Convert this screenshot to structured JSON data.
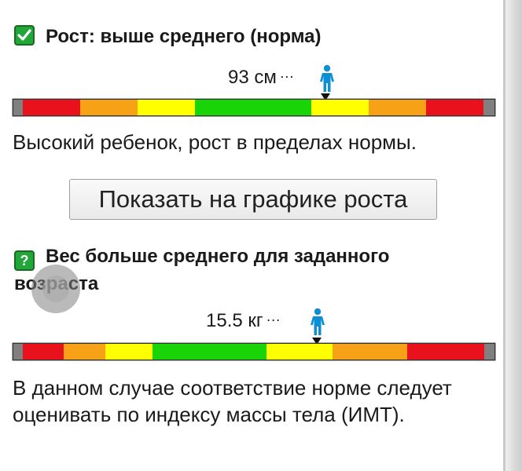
{
  "height": {
    "heading": "Рост: выше среднего (норма)",
    "value": "93 см",
    "dots": "···",
    "description": "Высокий ребенок, рост в пределах нормы.",
    "status_icon": "check-icon",
    "level": 0.63
  },
  "graph_button": {
    "label": "Показать на графике роста"
  },
  "weight": {
    "heading": "Вес больше среднего для заданного возраста",
    "question_mark": "?",
    "value": "15.5 кг",
    "dots": "···",
    "description": "В данном случае соответствие норме следует оценивать по индексу массы тела (ИМТ).",
    "status_icon": "question-icon",
    "level": 0.63
  },
  "colors": {
    "red": "#e8111c",
    "orange": "#f6a116",
    "yellow": "#ffff00",
    "green": "#19d407",
    "gray": "#808080",
    "person": "#0d8fd6",
    "ok_icon": "#22a63a"
  }
}
